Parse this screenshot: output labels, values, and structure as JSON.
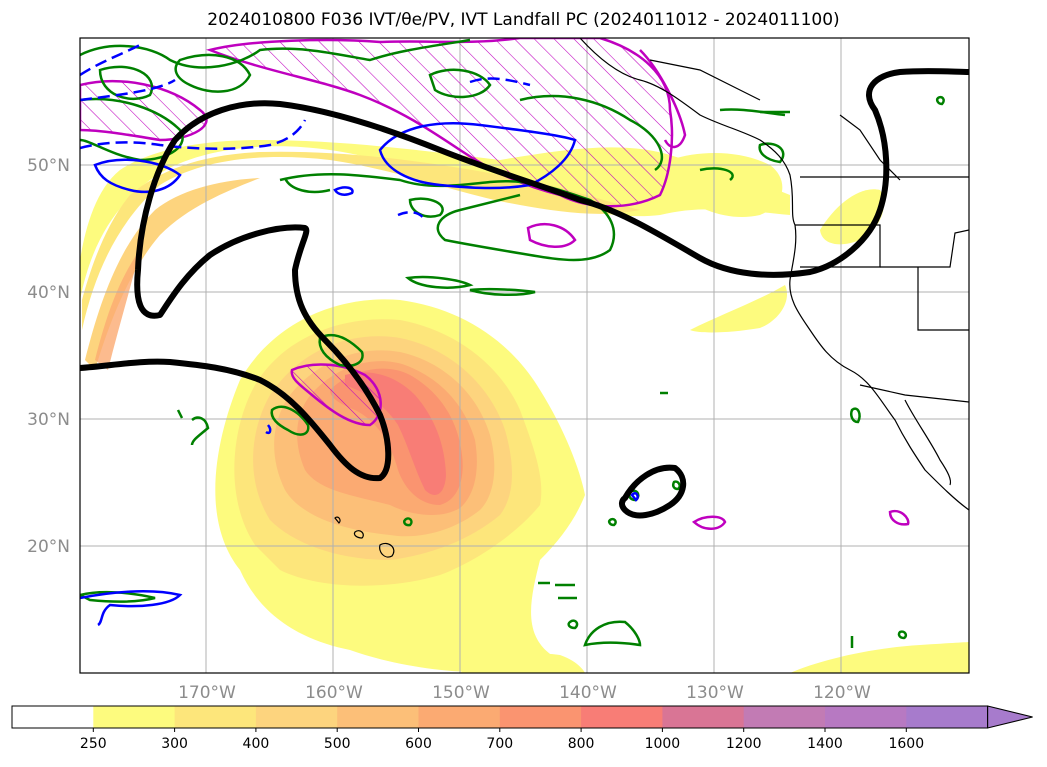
{
  "title": "2024010800 F036 IVT/θe/PV, IVT Landfall PC (2024011012 - 2024011100)",
  "map": {
    "lon_range": [
      -180,
      -110
    ],
    "lat_range": [
      10,
      60
    ],
    "lat_ticks": [
      {
        "value": 50,
        "label": "50°N"
      },
      {
        "value": 40,
        "label": "40°N"
      },
      {
        "value": 30,
        "label": "30°N"
      },
      {
        "value": 20,
        "label": "20°N"
      }
    ],
    "lon_ticks": [
      {
        "value": -170,
        "label": "170°W"
      },
      {
        "value": -160,
        "label": "160°W"
      },
      {
        "value": -150,
        "label": "150°W"
      },
      {
        "value": -140,
        "label": "140°W"
      },
      {
        "value": -130,
        "label": "130°W"
      },
      {
        "value": -120,
        "label": "120°W"
      }
    ],
    "grid": true,
    "colors": {
      "ivt_250": "#fdfb7e",
      "ivt_300": "#fde67b",
      "ivt_400": "#fdd47e",
      "ivt_500": "#fcbf78",
      "ivt_600": "#fbaa72",
      "ivt_700": "#fa9470",
      "ivt_800": "#f87d76",
      "pv_contour": "#008000",
      "theta_e_contour": "#0000ff",
      "landfall_pc": "#bf00bf",
      "ivt_landfall_line": "#000000",
      "coastline": "#000000"
    }
  },
  "colorbar": {
    "ticks": [
      "250",
      "300",
      "400",
      "500",
      "600",
      "700",
      "800",
      "1000",
      "1200",
      "1400",
      "1600"
    ],
    "colors": [
      "#ffffff",
      "#fdfb7e",
      "#fde67b",
      "#fdd47e",
      "#fcbf78",
      "#fbaa72",
      "#fa9470",
      "#f87d76",
      "#d97595",
      "#c27bb4",
      "#b779c2",
      "#a77bcc"
    ],
    "extend": "max"
  }
}
